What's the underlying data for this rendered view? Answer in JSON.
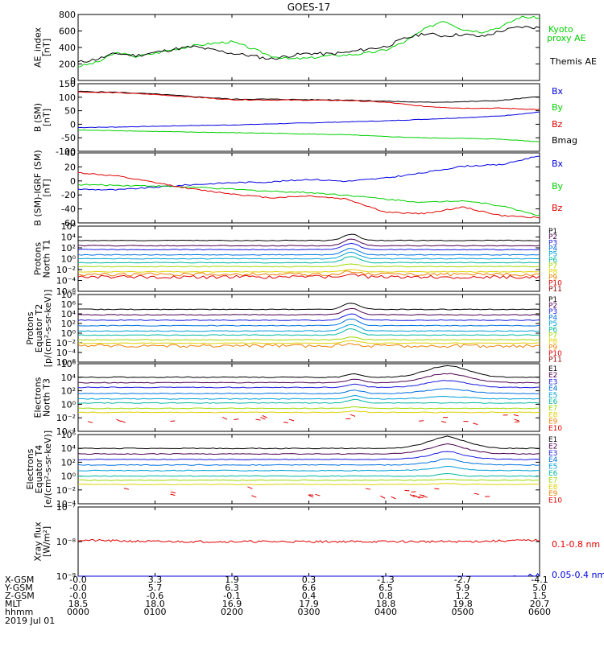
{
  "title": "GOES-17",
  "date_label": "2019 Jul 01",
  "colors": {
    "black": "#000000",
    "red": "#e00000",
    "green": "#00d000",
    "blue": "#0000e0",
    "P1": "#000000",
    "P2": "#4b0050",
    "P3": "#1a1ae0",
    "P4": "#0070e0",
    "P5": "#00a0d8",
    "P6": "#00b8a0",
    "P7": "#a0d800",
    "P8": "#e0d000",
    "P9": "#f08000",
    "P10": "#e00000",
    "P11": "#900000"
  },
  "time_rows": [
    {
      "label": "X-GSM",
      "values": [
        "-0.0",
        "3.3",
        "1.9",
        "0.3",
        "-1.3",
        "-2.7",
        "-4.1"
      ]
    },
    {
      "label": "Y-GSM",
      "values": [
        "-0.0",
        "5.7",
        "6.3",
        "6.6",
        "6.5",
        "5.9",
        "5.0"
      ]
    },
    {
      "label": "Z-GSM",
      "values": [
        "-0.0",
        "-0.6",
        "-0.1",
        "0.4",
        "0.8",
        "1.2",
        "1.5"
      ]
    },
    {
      "label": "MLT",
      "values": [
        "18.5",
        "18.0",
        "16.9",
        "17.9",
        "18.8",
        "19.8",
        "20.7"
      ]
    },
    {
      "label": "hhmm",
      "values": [
        "0000",
        "0100",
        "0200",
        "0300",
        "0400",
        "0500",
        "0600"
      ]
    }
  ],
  "panels": [
    {
      "ylabel": [
        "AE_index",
        "[nT]"
      ],
      "ticks": [
        "800",
        "600",
        "400",
        "200",
        "0"
      ],
      "legend": [
        {
          "text": "Kyoto",
          "color": "green"
        },
        {
          "text": "proxy AE",
          "color": "green"
        },
        {
          "text": "Themis AE",
          "color": "black"
        }
      ]
    },
    {
      "ylabel": [
        "B (SM)",
        "[nT]"
      ],
      "ticks": [
        "150",
        "100",
        "50",
        "0",
        "-50",
        "-100"
      ],
      "legend": [
        {
          "text": "Bx",
          "color": "blue"
        },
        {
          "text": "By",
          "color": "green"
        },
        {
          "text": "Bz",
          "color": "red"
        },
        {
          "text": "Bmag",
          "color": "black"
        }
      ]
    },
    {
      "ylabel": [
        "B (SM)-IGRF (SM)",
        "[nT]"
      ],
      "ticks": [
        "40",
        "20",
        "0",
        "-20",
        "-40",
        "-60"
      ],
      "legend": [
        {
          "text": "Bx",
          "color": "blue"
        },
        {
          "text": "By",
          "color": "green"
        },
        {
          "text": "Bz",
          "color": "red"
        }
      ]
    },
    {
      "ylabel": [
        "Protons",
        "North T1"
      ],
      "ticks": [
        "10⁶",
        "10⁴",
        "10²",
        "10⁰",
        "10⁻²",
        "10⁻⁴",
        "10⁻⁶"
      ],
      "legend": [
        "P1",
        "P2",
        "P3",
        "P4",
        "P5",
        "P6",
        "P7",
        "P8",
        "P9",
        "P10",
        "P11"
      ]
    },
    {
      "ylabel": [
        "Protons",
        "Equator T2",
        "[p/(cm²-s-sr-keV)]"
      ],
      "ticks": [
        "10⁸",
        "10⁶",
        "10⁴",
        "10²",
        "10⁰",
        "10⁻²",
        "10⁻⁴",
        "10⁻⁶"
      ],
      "legend": [
        "P1",
        "P2",
        "P3",
        "P4",
        "P5",
        "P6",
        "P7",
        "P8",
        "P9",
        "P10",
        "P11"
      ]
    },
    {
      "ylabel": [
        "Electrons",
        "North T3"
      ],
      "ticks": [
        "10⁶",
        "10⁴",
        "10²",
        "10⁰",
        "10⁻²",
        "10⁻⁴"
      ],
      "legend": [
        "E1",
        "E2",
        "E3",
        "E4",
        "E5",
        "E6",
        "E7",
        "E8",
        "E9",
        "E10"
      ]
    },
    {
      "ylabel": [
        "Electrons",
        "Equator T4",
        "[e/(cm²-s-sr-keV)]"
      ],
      "ticks": [
        "10⁶",
        "10⁴",
        "10²",
        "10⁰",
        "10⁻²",
        "10⁻⁴"
      ],
      "legend": [
        "E1",
        "E2",
        "E3",
        "E4",
        "E5",
        "E6",
        "E7",
        "E8",
        "E9",
        "E10"
      ]
    },
    {
      "ylabel": [
        "Xray flux",
        "[W/m²]"
      ],
      "ticks": [
        "10⁻⁷",
        "10⁻⁸",
        "10⁻⁹"
      ],
      "legend": [
        {
          "text": "0.1-0.8 nm",
          "color": "red"
        },
        {
          "text": "0.05-0.4 nm",
          "color": "blue"
        }
      ]
    }
  ],
  "chart_data": {
    "type": "line",
    "title": "GOES-17",
    "x_label": "hhmm",
    "x_ticks": [
      "0000",
      "0100",
      "0200",
      "0300",
      "0400",
      "0500",
      "0600"
    ],
    "series": {
      "ae_themis": {
        "name": "Themis AE",
        "x": [
          0,
          0.25,
          0.5,
          0.75,
          1,
          1.25,
          1.5,
          1.75,
          2,
          2.25,
          2.5,
          2.75,
          3,
          3.25,
          3.5,
          3.75,
          4,
          4.25,
          4.5,
          4.75,
          5,
          5.25,
          5.5,
          5.75,
          6
        ],
        "y": [
          220,
          260,
          330,
          300,
          340,
          380,
          410,
          370,
          330,
          300,
          260,
          300,
          330,
          320,
          340,
          380,
          410,
          510,
          570,
          540,
          560,
          530,
          600,
          650,
          640
        ]
      },
      "ae_kyoto": {
        "name": "Kyoto proxy AE",
        "x": [
          0,
          0.25,
          0.5,
          0.75,
          1,
          1.25,
          1.5,
          1.75,
          2,
          2.25,
          2.5,
          2.75,
          3,
          3.25,
          3.5,
          3.75,
          4,
          4.25,
          4.5,
          4.75,
          5,
          5.25,
          5.5,
          5.75,
          6
        ],
        "y": [
          170,
          220,
          340,
          290,
          330,
          380,
          420,
          450,
          470,
          390,
          300,
          260,
          270,
          300,
          310,
          330,
          370,
          470,
          620,
          730,
          620,
          590,
          650,
          770,
          760
        ]
      },
      "b_mag": {
        "name": "Bmag",
        "x": [
          0,
          0.5,
          1,
          1.5,
          2,
          2.5,
          3,
          3.5,
          4,
          4.5,
          5,
          5.5,
          6
        ],
        "y": [
          120,
          117,
          110,
          100,
          90,
          90,
          88,
          87,
          82,
          78,
          80,
          85,
          100
        ]
      },
      "b_bz": {
        "name": "Bz",
        "x": [
          0,
          0.5,
          1,
          1.5,
          2,
          2.5,
          3,
          3.5,
          4,
          4.5,
          5,
          5.5,
          6
        ],
        "y": [
          118,
          115,
          108,
          98,
          88,
          87,
          86,
          85,
          78,
          62,
          55,
          55,
          50
        ]
      },
      "b_bx": {
        "name": "Bx",
        "x": [
          0,
          0.5,
          1,
          1.5,
          2,
          2.5,
          3,
          3.5,
          4,
          4.5,
          5,
          5.5,
          6
        ],
        "y": [
          -20,
          -18,
          -15,
          -12,
          -10,
          -6,
          -2,
          2,
          6,
          12,
          18,
          25,
          40
        ]
      },
      "b_by": {
        "name": "By",
        "x": [
          0,
          0.5,
          1,
          1.5,
          2,
          2.5,
          3,
          3.5,
          4,
          4.5,
          5,
          5.5,
          6
        ],
        "y": [
          -30,
          -32,
          -35,
          -38,
          -40,
          -42,
          -45,
          -48,
          -55,
          -60,
          -62,
          -65,
          -75
        ]
      },
      "d_bx": {
        "name": "Bx",
        "x": [
          0,
          0.5,
          1,
          1.5,
          2,
          2.5,
          3,
          3.5,
          4,
          4.5,
          5,
          5.5,
          6
        ],
        "y": [
          -15,
          -16,
          -12,
          -8,
          -5,
          -4,
          0,
          -3,
          2,
          10,
          20,
          22,
          36
        ]
      },
      "d_by": {
        "name": "By",
        "x": [
          0,
          0.5,
          1,
          1.5,
          2,
          2.5,
          3,
          3.5,
          4,
          4.5,
          5,
          5.5,
          6
        ],
        "y": [
          -8,
          -9,
          -10,
          -12,
          -15,
          -18,
          -20,
          -24,
          -30,
          -35,
          -32,
          -40,
          -55
        ]
      },
      "d_bz": {
        "name": "Bz",
        "x": [
          0,
          0.5,
          1,
          1.5,
          2,
          2.5,
          3,
          3.5,
          4,
          4.5,
          5,
          5.5,
          6
        ],
        "y": [
          10,
          5,
          -5,
          -15,
          -22,
          -28,
          -25,
          -30,
          -50,
          -52,
          -42,
          -55,
          -58
        ]
      },
      "xray_long": {
        "name": "0.1-0.8 nm",
        "x": [
          0,
          1,
          2,
          3,
          4,
          5,
          6
        ],
        "y": [
          1.1e-08,
          1e-08,
          1e-08,
          1e-08,
          1e-08,
          1e-08,
          1.1e-08
        ]
      },
      "xray_short": {
        "name": "0.05-0.4 nm",
        "x": [
          0,
          1,
          2,
          3,
          4,
          5,
          6
        ],
        "y": [
          5e-10,
          5e-10,
          4.5e-10,
          5e-10,
          5e-10,
          6e-10,
          8e-10
        ]
      }
    }
  }
}
